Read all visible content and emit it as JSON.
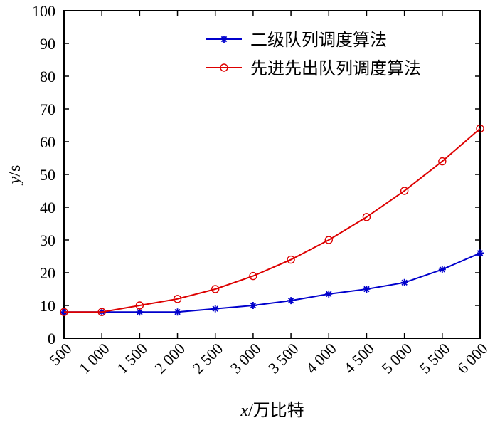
{
  "chart_data": {
    "type": "line",
    "x": [
      500,
      1000,
      1500,
      2000,
      2500,
      3000,
      3500,
      4000,
      4500,
      5000,
      5500,
      6000
    ],
    "x_tick_labels": [
      "500",
      "1 000",
      "1 500",
      "2 000",
      "2 500",
      "3 000",
      "3 500",
      "4 000",
      "4 500",
      "5 000",
      "5 500",
      "6 000"
    ],
    "y_ticks": [
      0,
      10,
      20,
      30,
      40,
      50,
      60,
      70,
      80,
      90,
      100
    ],
    "xlim": [
      500,
      6000
    ],
    "ylim": [
      0,
      100
    ],
    "xlabel_var": "x",
    "xlabel_unit": "/万比特",
    "ylabel_var": "y",
    "ylabel_unit": "/s",
    "grid": false,
    "legend_position": "top-right",
    "series": [
      {
        "name": "二级队列调度算法",
        "color": "#0000cc",
        "marker": "asterisk",
        "values": [
          8,
          8,
          8,
          8,
          9,
          10,
          11.5,
          13.5,
          15,
          17,
          21,
          26
        ]
      },
      {
        "name": "先进先出队列调度算法",
        "color": "#dd0000",
        "marker": "circle",
        "values": [
          8,
          8,
          10,
          12,
          15,
          19,
          24,
          30,
          37,
          45,
          54,
          64
        ]
      }
    ]
  }
}
